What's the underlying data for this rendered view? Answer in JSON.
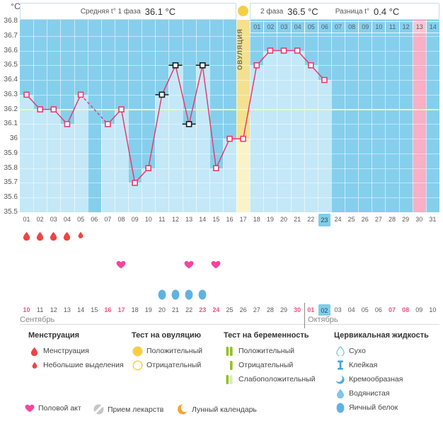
{
  "header": {
    "unit": "°C",
    "phase1_label": "Средняя t° 1 фаза",
    "phase1_value": "36.1 °C",
    "phase2_label": "2 фаза",
    "phase2_value": "36.5 °C",
    "diff_label": "Разница t°",
    "diff_value": "0.4 °C",
    "ovulation_label": "ОВУЛЯЦИЯ"
  },
  "chart_data": {
    "type": "line",
    "title": "Basal body temperature cycle chart",
    "ylabel": "°C",
    "ylim": [
      35.5,
      36.8
    ],
    "yticks": [
      "36.8",
      "36.7",
      "36.6",
      "36.5",
      "36.4",
      "36.3",
      "36.2",
      "36.1",
      "36",
      "35.9",
      "35.8",
      "35.7",
      "35.6",
      "35.5"
    ],
    "grid": "white dotted horizontal lines every 0.1",
    "coverline": 36.2,
    "x_days": [
      "01",
      "02",
      "03",
      "04",
      "05",
      "06",
      "07",
      "08",
      "09",
      "10",
      "11",
      "12",
      "13",
      "14",
      "15",
      "16",
      "17",
      "18",
      "19",
      "20",
      "21",
      "22",
      "23",
      "24",
      "25",
      "26",
      "27",
      "28",
      "29",
      "30",
      "31"
    ],
    "temps": [
      36.3,
      36.2,
      36.2,
      36.1,
      36.3,
      null,
      36.1,
      36.2,
      35.7,
      35.8,
      36.3,
      36.5,
      36.1,
      36.5,
      35.8,
      36.0,
      36.0,
      36.5,
      36.6,
      36.6,
      36.6,
      36.5,
      36.4,
      null,
      null,
      null,
      null,
      null,
      null,
      null,
      null
    ],
    "flagged_days": [
      11,
      12,
      13,
      14
    ],
    "ovulation_day": 17,
    "predicted_period_day": 30,
    "today_cycle_day": "23",
    "phase2_day_labels": [
      "01",
      "02",
      "03",
      "04",
      "05",
      "06",
      "07",
      "08",
      "09",
      "10",
      "11",
      "12",
      "13",
      "14"
    ],
    "phase2_pink_day": "13",
    "legend_position": "bottom"
  },
  "events": {
    "menstruation": [
      {
        "day": 1,
        "type": "full"
      },
      {
        "day": 2,
        "type": "full"
      },
      {
        "day": 3,
        "type": "full"
      },
      {
        "day": 4,
        "type": "full"
      },
      {
        "day": 5,
        "type": "light"
      }
    ],
    "intercourse_days": [
      8,
      13,
      15
    ],
    "cervical_fluid": [
      {
        "day": 11,
        "type": "egg-white"
      },
      {
        "day": 12,
        "type": "egg-white"
      },
      {
        "day": 13,
        "type": "egg-white"
      },
      {
        "day": 14,
        "type": "egg-white"
      }
    ]
  },
  "calendar": {
    "months": [
      {
        "name": "Сентябрь",
        "dates": [
          {
            "label": "10",
            "weekend": true
          },
          {
            "label": "11"
          },
          {
            "label": "12"
          },
          {
            "label": "13"
          },
          {
            "label": "14"
          },
          {
            "label": "15"
          },
          {
            "label": "16",
            "weekend": true
          },
          {
            "label": "17",
            "weekend": true
          },
          {
            "label": "18"
          },
          {
            "label": "19"
          },
          {
            "label": "20"
          },
          {
            "label": "21"
          },
          {
            "label": "22"
          },
          {
            "label": "23",
            "weekend": true
          },
          {
            "label": "24",
            "weekend": true
          },
          {
            "label": "25"
          },
          {
            "label": "26"
          },
          {
            "label": "27"
          },
          {
            "label": "28"
          },
          {
            "label": "29"
          },
          {
            "label": "30",
            "weekend": true
          }
        ]
      },
      {
        "name": "Октябрь",
        "dates": [
          {
            "label": "01",
            "weekend": true
          },
          {
            "label": "02",
            "today": true
          },
          {
            "label": "03"
          },
          {
            "label": "04"
          },
          {
            "label": "05"
          },
          {
            "label": "06"
          },
          {
            "label": "07",
            "weekend": true
          },
          {
            "label": "08",
            "weekend": true
          },
          {
            "label": "09"
          },
          {
            "label": "10"
          }
        ]
      }
    ]
  },
  "legend": {
    "groups": [
      {
        "title": "Менструация",
        "items": [
          {
            "icon": "menstruation-drop-icon",
            "label": "Менструация"
          },
          {
            "icon": "spotting-drop-icon",
            "label": "Небольшие выделения"
          }
        ]
      },
      {
        "title": "Тест на овуляцию",
        "items": [
          {
            "icon": "ovulation-test-positive-icon",
            "label": "Положительный"
          },
          {
            "icon": "ovulation-test-negative-icon",
            "label": "Отрицательный"
          }
        ]
      },
      {
        "title": "Тест на беременность",
        "items": [
          {
            "icon": "pregnancy-test-positive-icon",
            "label": "Положительный"
          },
          {
            "icon": "pregnancy-test-negative-icon",
            "label": "Отрицательный"
          },
          {
            "icon": "pregnancy-test-weak-icon",
            "label": "Слабоположительный"
          }
        ]
      },
      {
        "title": "Цервикальная жидкость",
        "items": [
          {
            "icon": "fluid-dry-icon",
            "label": "Сухо"
          },
          {
            "icon": "fluid-sticky-icon",
            "label": "Клейкая"
          },
          {
            "icon": "fluid-creamy-icon",
            "label": "Кремообразная"
          },
          {
            "icon": "fluid-watery-icon",
            "label": "Водянистая"
          },
          {
            "icon": "fluid-eggwhite-icon",
            "label": "Яичный белок"
          }
        ]
      }
    ],
    "extra": [
      {
        "icon": "intercourse-heart-icon",
        "label": "Половой акт"
      },
      {
        "icon": "medication-icon",
        "label": "Прием лекарств"
      },
      {
        "icon": "moon-calendar-icon",
        "label": "Лунный календарь"
      }
    ]
  },
  "colors": {
    "chart_bg": "#85CFED",
    "bar": "#C4E8F7",
    "ovulation_band": "#F3E190",
    "ovulation_band_light": "#FAF3C8",
    "period_band": "#F9AFC5",
    "phase2_pink_cell": "#F7C5D2",
    "coverline": "#F9F6A6",
    "temp_line": "#EA3A6E",
    "flag_black": "#1A1A1A",
    "today_highlight": "#7FCDEB",
    "weekend_red": "#F2527E",
    "menstruation_red": "#EF4444",
    "heart_pink": "#F4459F",
    "test_yellow": "#F6CE45",
    "preg_green": "#94C121",
    "preg_green_pale": "#DCEBB6",
    "fluid_blue": "#5FB2E2",
    "fluid_blue_light": "#7FC5EA",
    "med_gray": "#C6C6C6",
    "moon_orange": "#F9A430"
  }
}
